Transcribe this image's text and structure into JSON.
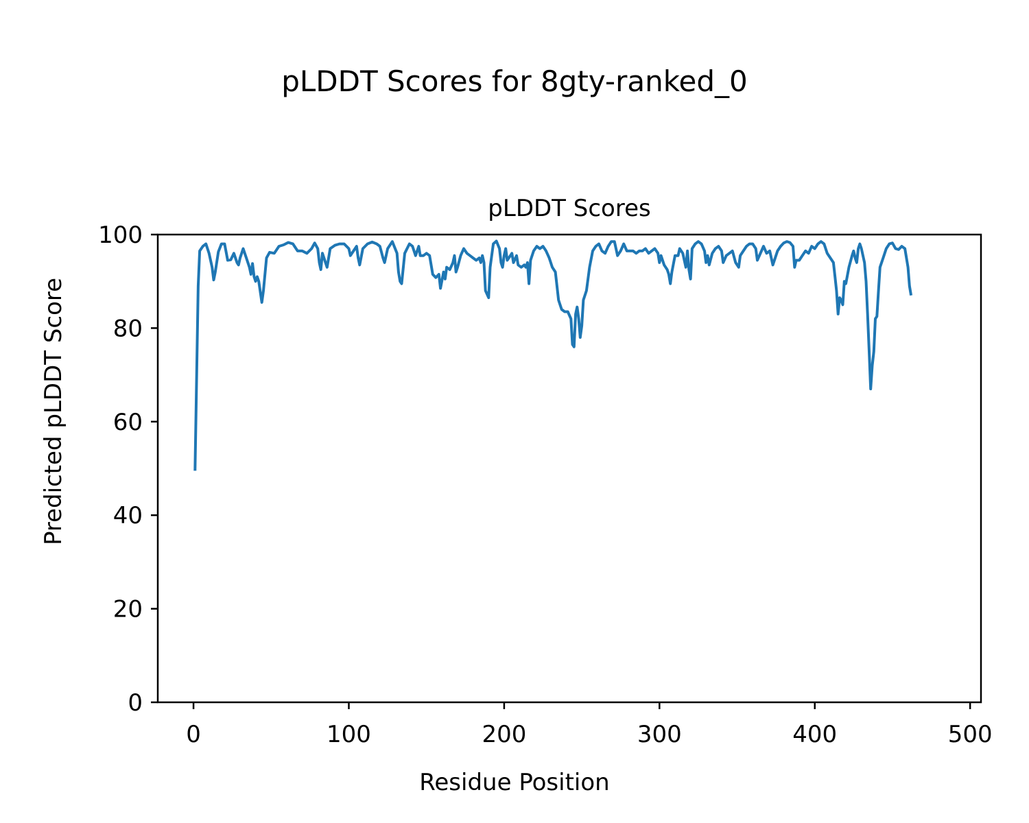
{
  "figure": {
    "suptitle": "pLDDT Scores for 8gty-ranked_0"
  },
  "chart_data": {
    "type": "line",
    "title": "pLDDT Scores",
    "xlabel": "Residue Position",
    "ylabel": "Predicted pLDDT Score",
    "xlim": [
      -23,
      507
    ],
    "ylim": [
      0,
      100
    ],
    "xticks": [
      0,
      100,
      200,
      300,
      400,
      500
    ],
    "yticks": [
      0,
      20,
      40,
      60,
      80,
      100
    ],
    "grid": false,
    "series": [
      {
        "color": "#1f77b4",
        "points": [
          [
            1,
            49.5
          ],
          [
            3,
            89
          ],
          [
            4,
            96.5
          ],
          [
            6,
            97.5
          ],
          [
            8,
            98
          ],
          [
            10,
            96
          ],
          [
            12,
            93
          ],
          [
            13,
            90.3
          ],
          [
            14,
            92
          ],
          [
            16,
            96.3
          ],
          [
            18,
            98
          ],
          [
            20,
            98
          ],
          [
            22,
            94.5
          ],
          [
            24,
            94.6
          ],
          [
            26,
            96
          ],
          [
            28,
            94
          ],
          [
            29,
            93.5
          ],
          [
            30,
            95
          ],
          [
            32,
            97
          ],
          [
            34,
            95
          ],
          [
            36,
            93
          ],
          [
            37,
            91.5
          ],
          [
            38,
            93.8
          ],
          [
            39,
            91
          ],
          [
            40,
            90
          ],
          [
            41,
            91
          ],
          [
            42,
            90
          ],
          [
            44,
            85.5
          ],
          [
            45,
            88
          ],
          [
            47,
            95
          ],
          [
            49,
            96.2
          ],
          [
            52,
            96
          ],
          [
            55,
            97.5
          ],
          [
            58,
            97.8
          ],
          [
            61,
            98.3
          ],
          [
            64,
            98
          ],
          [
            67,
            96.5
          ],
          [
            70,
            96.5
          ],
          [
            73,
            96
          ],
          [
            76,
            97
          ],
          [
            78,
            98.2
          ],
          [
            80,
            97
          ],
          [
            81,
            94
          ],
          [
            82,
            92.5
          ],
          [
            83,
            96
          ],
          [
            85,
            94
          ],
          [
            86,
            93
          ],
          [
            88,
            97
          ],
          [
            91,
            97.7
          ],
          [
            94,
            98
          ],
          [
            97,
            98
          ],
          [
            100,
            97
          ],
          [
            101,
            95.5
          ],
          [
            103,
            96.5
          ],
          [
            105,
            97.5
          ],
          [
            106,
            95
          ],
          [
            107,
            93.5
          ],
          [
            109,
            97
          ],
          [
            112,
            98
          ],
          [
            115,
            98.4
          ],
          [
            118,
            98
          ],
          [
            120,
            97.5
          ],
          [
            122,
            95
          ],
          [
            123,
            94
          ],
          [
            125,
            97
          ],
          [
            128,
            98.5
          ],
          [
            131,
            96
          ],
          [
            132,
            92
          ],
          [
            133,
            90
          ],
          [
            134,
            89.5
          ],
          [
            136,
            96
          ],
          [
            139,
            98
          ],
          [
            141,
            97.5
          ],
          [
            143,
            95.5
          ],
          [
            145,
            97.5
          ],
          [
            146,
            95.5
          ],
          [
            148,
            95.5
          ],
          [
            150,
            96
          ],
          [
            152,
            95.5
          ],
          [
            154,
            91.5
          ],
          [
            156,
            90.8
          ],
          [
            158,
            91.5
          ],
          [
            159,
            88.5
          ],
          [
            161,
            92
          ],
          [
            162,
            90.5
          ],
          [
            163,
            93
          ],
          [
            165,
            92.5
          ],
          [
            167,
            94
          ],
          [
            168,
            95.5
          ],
          [
            169,
            92
          ],
          [
            170,
            93
          ],
          [
            172,
            95.5
          ],
          [
            174,
            97
          ],
          [
            176,
            96
          ],
          [
            178,
            95.5
          ],
          [
            180,
            95
          ],
          [
            182,
            94.5
          ],
          [
            184,
            95
          ],
          [
            185,
            94
          ],
          [
            186,
            95.5
          ],
          [
            187,
            94
          ],
          [
            188,
            88
          ],
          [
            190,
            86.5
          ],
          [
            191,
            93
          ],
          [
            193,
            98
          ],
          [
            195,
            98.6
          ],
          [
            197,
            97
          ],
          [
            198,
            94
          ],
          [
            199,
            93
          ],
          [
            200,
            95.5
          ],
          [
            201,
            97
          ],
          [
            202,
            94.5
          ],
          [
            204,
            95.5
          ],
          [
            205,
            96
          ],
          [
            206,
            94
          ],
          [
            208,
            95.5
          ],
          [
            209,
            93.5
          ],
          [
            211,
            93
          ],
          [
            213,
            93.5
          ],
          [
            214,
            93
          ],
          [
            215,
            94
          ],
          [
            216,
            89.5
          ],
          [
            217,
            94.5
          ],
          [
            219,
            96.5
          ],
          [
            221,
            97.5
          ],
          [
            223,
            97
          ],
          [
            225,
            97.5
          ],
          [
            227,
            96.5
          ],
          [
            229,
            95
          ],
          [
            231,
            93
          ],
          [
            233,
            92
          ],
          [
            234,
            89
          ],
          [
            235,
            86
          ],
          [
            237,
            84
          ],
          [
            239,
            83.5
          ],
          [
            241,
            83.5
          ],
          [
            243,
            82
          ],
          [
            244,
            76.5
          ],
          [
            245,
            76
          ],
          [
            246,
            83
          ],
          [
            247,
            84.5
          ],
          [
            248,
            82
          ],
          [
            249,
            78
          ],
          [
            250,
            80.5
          ],
          [
            251,
            86
          ],
          [
            253,
            88
          ],
          [
            255,
            93
          ],
          [
            257,
            96.5
          ],
          [
            259,
            97.5
          ],
          [
            261,
            98
          ],
          [
            263,
            96.5
          ],
          [
            265,
            96
          ],
          [
            267,
            97.5
          ],
          [
            269,
            98.5
          ],
          [
            271,
            98.5
          ],
          [
            273,
            95.5
          ],
          [
            275,
            96.5
          ],
          [
            277,
            98
          ],
          [
            279,
            96.5
          ],
          [
            281,
            96.5
          ],
          [
            283,
            96.5
          ],
          [
            285,
            96
          ],
          [
            287,
            96.5
          ],
          [
            289,
            96.5
          ],
          [
            291,
            97
          ],
          [
            293,
            96
          ],
          [
            295,
            96.5
          ],
          [
            297,
            97
          ],
          [
            299,
            96
          ],
          [
            300,
            94
          ],
          [
            301,
            95.5
          ],
          [
            303,
            93.5
          ],
          [
            305,
            92.5
          ],
          [
            306,
            91.5
          ],
          [
            307,
            89.5
          ],
          [
            308,
            92
          ],
          [
            310,
            95.5
          ],
          [
            312,
            95.5
          ],
          [
            313,
            97
          ],
          [
            315,
            96
          ],
          [
            317,
            93
          ],
          [
            318,
            96.5
          ],
          [
            319,
            92.5
          ],
          [
            320,
            90.5
          ],
          [
            321,
            97
          ],
          [
            323,
            98
          ],
          [
            325,
            98.5
          ],
          [
            327,
            98
          ],
          [
            329,
            96.5
          ],
          [
            330,
            94
          ],
          [
            331,
            95.5
          ],
          [
            332,
            93.5
          ],
          [
            334,
            96
          ],
          [
            336,
            97
          ],
          [
            338,
            97.5
          ],
          [
            340,
            96.5
          ],
          [
            341,
            94
          ],
          [
            343,
            95.5
          ],
          [
            345,
            96
          ],
          [
            347,
            96.5
          ],
          [
            349,
            94
          ],
          [
            351,
            93
          ],
          [
            352,
            95.5
          ],
          [
            354,
            96.5
          ],
          [
            356,
            97.5
          ],
          [
            358,
            98
          ],
          [
            360,
            98
          ],
          [
            362,
            97
          ],
          [
            363,
            94.5
          ],
          [
            365,
            96
          ],
          [
            367,
            97.5
          ],
          [
            369,
            96
          ],
          [
            371,
            96.5
          ],
          [
            373,
            93.5
          ],
          [
            374,
            94.5
          ],
          [
            376,
            96.5
          ],
          [
            378,
            97.5
          ],
          [
            380,
            98.2
          ],
          [
            382,
            98.5
          ],
          [
            384,
            98.3
          ],
          [
            386,
            97.5
          ],
          [
            387,
            93
          ],
          [
            388,
            94.5
          ],
          [
            390,
            94.5
          ],
          [
            392,
            95.5
          ],
          [
            394,
            96.5
          ],
          [
            396,
            96
          ],
          [
            398,
            97.5
          ],
          [
            400,
            97
          ],
          [
            402,
            98
          ],
          [
            404,
            98.5
          ],
          [
            406,
            98
          ],
          [
            408,
            96
          ],
          [
            410,
            95
          ],
          [
            412,
            94
          ],
          [
            413,
            91
          ],
          [
            414,
            88
          ],
          [
            415,
            83
          ],
          [
            416,
            86.5
          ],
          [
            417,
            86
          ],
          [
            418,
            85
          ],
          [
            419,
            90
          ],
          [
            420,
            89.5
          ],
          [
            422,
            93
          ],
          [
            424,
            95.5
          ],
          [
            425,
            96.5
          ],
          [
            426,
            95
          ],
          [
            427,
            94
          ],
          [
            428,
            97
          ],
          [
            429,
            98
          ],
          [
            430,
            97
          ],
          [
            432,
            94
          ],
          [
            433,
            90
          ],
          [
            434,
            83
          ],
          [
            435,
            75
          ],
          [
            436,
            67
          ],
          [
            437,
            72
          ],
          [
            438,
            75
          ],
          [
            439,
            82
          ],
          [
            440,
            82.5
          ],
          [
            441,
            88
          ],
          [
            442,
            93
          ],
          [
            444,
            95
          ],
          [
            446,
            97
          ],
          [
            448,
            98
          ],
          [
            450,
            98.2
          ],
          [
            452,
            97
          ],
          [
            454,
            96.8
          ],
          [
            456,
            97.5
          ],
          [
            458,
            97
          ],
          [
            460,
            93
          ],
          [
            461,
            89
          ],
          [
            462,
            87
          ]
        ]
      }
    ]
  }
}
